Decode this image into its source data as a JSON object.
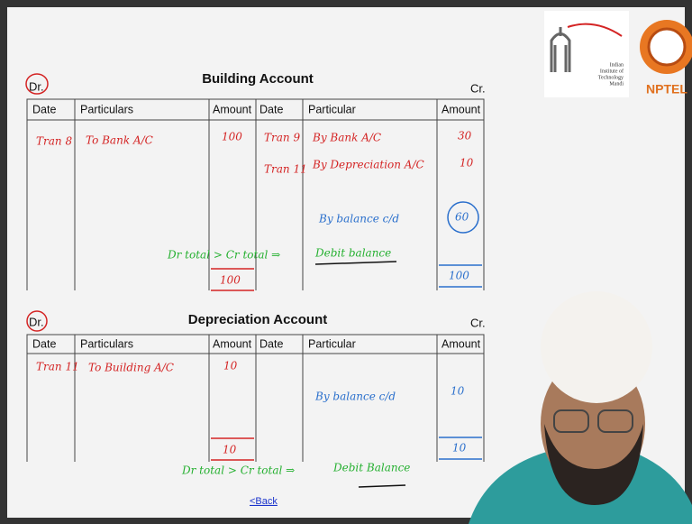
{
  "logo": {
    "lines": [
      "Indian",
      "Institute of",
      "Technology",
      "Mandi"
    ],
    "name": "NPTEL"
  },
  "accounts": [
    {
      "debit_label": "Dr.",
      "title": "Building Account",
      "credit_label": "Cr.",
      "headers": [
        "Date",
        "Particulars",
        "Amount",
        "Date",
        "Particular",
        "Amount"
      ],
      "debit_entries": [
        {
          "date": "Tran 8",
          "particulars": "To Bank A/C",
          "amount": 100
        }
      ],
      "credit_entries": [
        {
          "date": "Tran 9",
          "particulars": "By Bank A/C",
          "amount": 30
        },
        {
          "date": "Tran 11",
          "particulars": "By Depreciation A/C",
          "amount": 10
        },
        {
          "particulars": "By balance c/d",
          "amount": 60
        }
      ],
      "debit_total": 100,
      "credit_total": 100,
      "note": "Dr total > Cr total ⇒",
      "conclusion": "Debit balance"
    },
    {
      "debit_label": "Dr.",
      "title": "Depreciation Account",
      "credit_label": "Cr.",
      "headers": [
        "Date",
        "Particulars",
        "Amount",
        "Date",
        "Particular",
        "Amount"
      ],
      "debit_entries": [
        {
          "date": "Tran 11",
          "particulars": "To Building A/C",
          "amount": 10
        }
      ],
      "credit_entries": [
        {
          "particulars": "By balance c/d",
          "amount": 10
        }
      ],
      "debit_total": 10,
      "credit_total": 10,
      "note": "Dr total > Cr total ⇒",
      "conclusion": "Debit Balance"
    }
  ],
  "back": "<Back"
}
